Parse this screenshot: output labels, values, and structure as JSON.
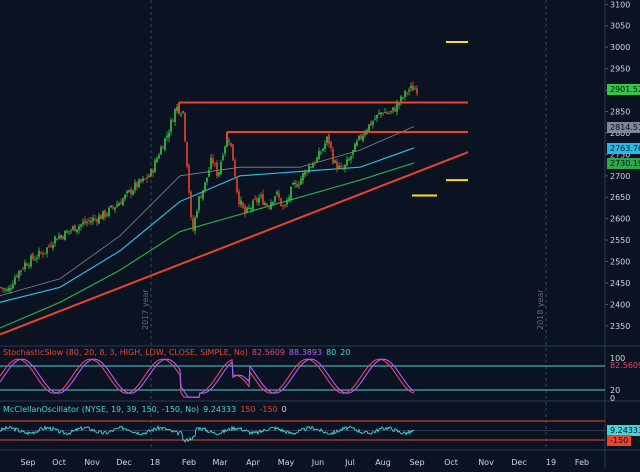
{
  "chart_data": [
    {
      "type": "line",
      "subtype": "candlestick-price",
      "title": "",
      "ylim": [
        2310,
        3110
      ],
      "yticks": [
        2350,
        2400,
        2450,
        2500,
        2550,
        2600,
        2650,
        2700,
        2750,
        2800,
        2850,
        2900,
        2950,
        3000,
        3050,
        3100
      ],
      "x_months": [
        "Sep",
        "Oct",
        "Nov",
        "Dec",
        "18",
        "Feb",
        "Mar",
        "Apr",
        "May",
        "Jun",
        "Jul",
        "Aug",
        "Sep",
        "Oct",
        "Nov",
        "Dec",
        "19",
        "Feb"
      ],
      "year_labels": [
        "2017 year",
        "2018 year"
      ],
      "price_points": [
        [
          0,
          2440
        ],
        [
          8,
          2430
        ],
        [
          15,
          2465
        ],
        [
          25,
          2495
        ],
        [
          35,
          2510
        ],
        [
          45,
          2525
        ],
        [
          55,
          2555
        ],
        [
          65,
          2565
        ],
        [
          75,
          2580
        ],
        [
          85,
          2590
        ],
        [
          95,
          2600
        ],
        [
          105,
          2610
        ],
        [
          115,
          2630
        ],
        [
          125,
          2650
        ],
        [
          135,
          2675
        ],
        [
          145,
          2690
        ],
        [
          152,
          2710
        ],
        [
          160,
          2760
        ],
        [
          168,
          2800
        ],
        [
          176,
          2860
        ],
        [
          183,
          2850
        ],
        [
          188,
          2700
        ],
        [
          192,
          2560
        ],
        [
          198,
          2640
        ],
        [
          205,
          2680
        ],
        [
          212,
          2740
        ],
        [
          218,
          2700
        ],
        [
          224,
          2770
        ],
        [
          229,
          2790
        ],
        [
          233,
          2740
        ],
        [
          238,
          2650
        ],
        [
          245,
          2610
        ],
        [
          252,
          2630
        ],
        [
          260,
          2650
        ],
        [
          268,
          2630
        ],
        [
          276,
          2660
        ],
        [
          284,
          2620
        ],
        [
          292,
          2670
        ],
        [
          300,
          2690
        ],
        [
          308,
          2720
        ],
        [
          316,
          2735
        ],
        [
          322,
          2760
        ],
        [
          328,
          2790
        ],
        [
          334,
          2730
        ],
        [
          342,
          2710
        ],
        [
          350,
          2740
        ],
        [
          358,
          2780
        ],
        [
          366,
          2810
        ],
        [
          374,
          2830
        ],
        [
          382,
          2850
        ],
        [
          390,
          2845
        ],
        [
          396,
          2860
        ],
        [
          402,
          2880
        ],
        [
          408,
          2900
        ],
        [
          414,
          2905
        ],
        [
          418,
          2902
        ]
      ],
      "moving_averages": [
        {
          "name": "",
          "color": "#7e8794",
          "points": [
            [
              0,
              2420
            ],
            [
              60,
              2460
            ],
            [
              120,
              2560
            ],
            [
              180,
              2700
            ],
            [
              240,
              2720
            ],
            [
              300,
              2720
            ],
            [
              360,
              2760
            ],
            [
              414,
              2815
            ]
          ]
        },
        {
          "name": "",
          "color": "#2bb8e0",
          "points": [
            [
              0,
              2405
            ],
            [
              60,
              2440
            ],
            [
              120,
              2525
            ],
            [
              180,
              2640
            ],
            [
              240,
              2700
            ],
            [
              300,
              2710
            ],
            [
              360,
              2720
            ],
            [
              414,
              2765
            ]
          ]
        },
        {
          "name": "",
          "color": "#2ea84a",
          "points": [
            [
              0,
              2345
            ],
            [
              60,
              2405
            ],
            [
              120,
              2480
            ],
            [
              180,
              2570
            ],
            [
              240,
              2610
            ],
            [
              300,
              2650
            ],
            [
              360,
              2690
            ],
            [
              414,
              2730
            ]
          ]
        }
      ],
      "horizontal_lines": [
        {
          "name": "",
          "value": 2871,
          "x_start": 179,
          "x_end": 468,
          "color": "#e8452a"
        },
        {
          "name": "",
          "value": 2802,
          "x_start": 227,
          "x_end": 468,
          "color": "#e8452a"
        }
      ],
      "trendline": {
        "color": "#e8452a",
        "from": [
          0,
          2330
        ],
        "to": [
          468,
          2755
        ]
      },
      "yellow_marks": [
        {
          "value": 3012,
          "x_start": 446,
          "x_end": 468
        },
        {
          "value": 2690,
          "x_start": 446,
          "x_end": 468
        },
        {
          "value": 2654,
          "x_start": 412,
          "x_end": 437
        }
      ],
      "price_badges": [
        {
          "value": "2901.52",
          "numeric": 2901.52,
          "color": "#37c545"
        },
        {
          "value": "2814.51",
          "numeric": 2814.51,
          "color": "#7e8794"
        },
        {
          "value": "2763.76",
          "numeric": 2763.76,
          "color": "#2bb8e0"
        },
        {
          "value": "2730.19",
          "numeric": 2730.19,
          "color": "#2ea84a"
        }
      ]
    },
    {
      "type": "line",
      "subtype": "oscillator",
      "title": "StochasticSlow (80, 20, 8, 3, HIGH, LOW, CLOSE, SIMPLE, No)",
      "legend_values": [
        {
          "text": "82.5609",
          "color": "#e8456b"
        },
        {
          "text": "88.3893",
          "color": "#b15cff"
        },
        {
          "text": "80",
          "color": "#49d1d6"
        },
        {
          "text": "20",
          "color": "#49d1d6"
        }
      ],
      "ylim": [
        0,
        100
      ],
      "levels": [
        80,
        20
      ],
      "right_labels": [
        "100",
        "82.5609",
        "20",
        "0"
      ]
    },
    {
      "type": "line",
      "subtype": "oscillator",
      "title": "McClellanOscillator (NYSE, 19, 39, 150, -150, No)",
      "legend_values": [
        {
          "text": "9.24333",
          "color": "#49d1d6"
        },
        {
          "text": "150",
          "color": "#e8452a"
        },
        {
          "text": "-150",
          "color": "#e8452a"
        },
        {
          "text": "0",
          "color": "#cfd6e3"
        }
      ],
      "ylim": [
        -260,
        260
      ],
      "levels": [
        150,
        -150
      ],
      "right_labels": [
        "9.24333",
        "-150"
      ]
    }
  ],
  "colors": {
    "background": "#0b1322",
    "grid": "#1f2a3b",
    "candle_up": "#37c545",
    "candle_down": "#e8452a",
    "text": "#cfd6e3"
  }
}
